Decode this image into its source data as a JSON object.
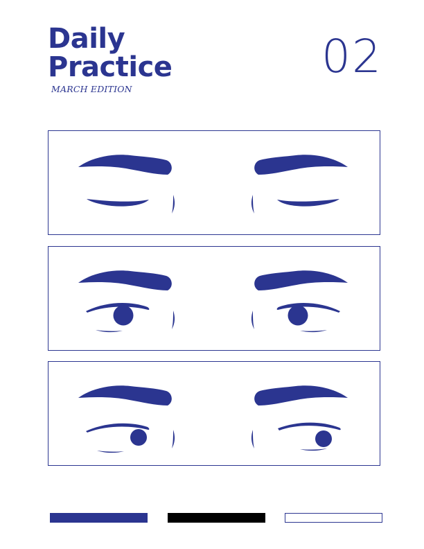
{
  "header": {
    "title_line1": "Daily",
    "title_line2": "Practice",
    "subtitle": "MARCH EDITION",
    "issue_number": "02"
  },
  "panels": [
    {
      "expression": "eyes-closed"
    },
    {
      "expression": "eyes-open-center"
    },
    {
      "expression": "eyes-looking-right"
    }
  ],
  "colors": {
    "ink": "#2b3590",
    "black": "#000000",
    "paper": "#ffffff"
  }
}
